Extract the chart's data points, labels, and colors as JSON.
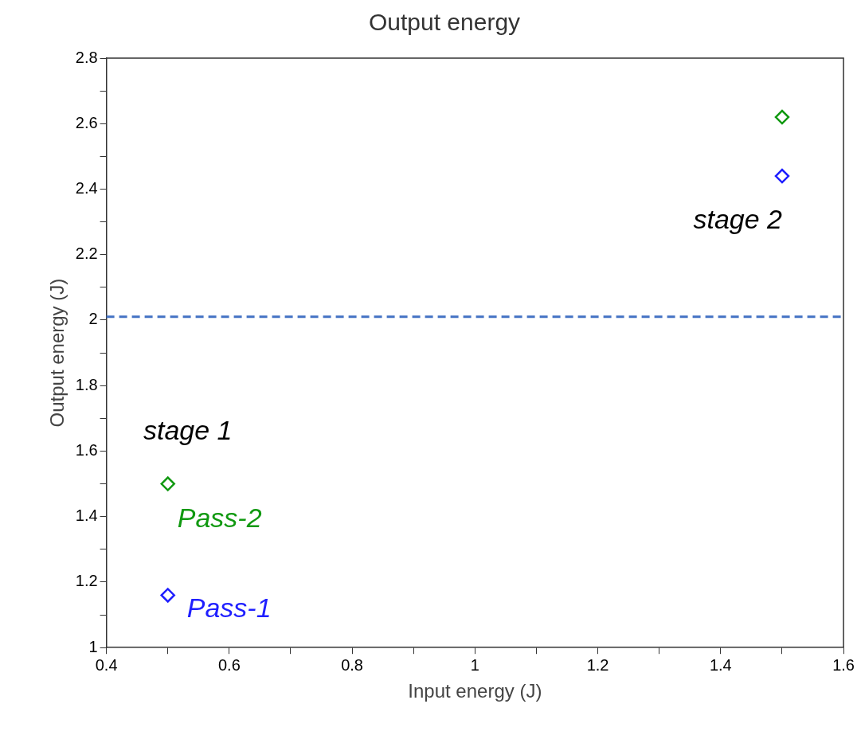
{
  "chart_data": {
    "type": "scatter",
    "title": "Output energy",
    "xlabel": "Input energy (J)",
    "ylabel": "Output energy (J)",
    "x": [
      0.5,
      1.5
    ],
    "series": [
      {
        "name": "Pass-1",
        "color": "#1f1fff",
        "values": [
          1.16,
          2.44
        ]
      },
      {
        "name": "Pass-2",
        "color": "#119911",
        "values": [
          1.5,
          2.62
        ]
      }
    ],
    "xlim": [
      0.4,
      1.6
    ],
    "xticks": [
      0.4,
      {
        "value": 0.5,
        "label": null
      },
      0.6,
      {
        "value": 0.7,
        "label": null
      },
      0.8,
      {
        "value": 0.9,
        "label": null
      },
      1,
      {
        "value": 1.1,
        "label": null
      },
      1.2,
      {
        "value": 1.3,
        "label": null
      },
      1.4,
      {
        "value": 1.5,
        "label": null
      },
      1.6
    ],
    "ylim": [
      1,
      2.8
    ],
    "yticks": [
      1,
      {
        "value": 1.1,
        "label": null
      },
      1.2,
      {
        "value": 1.3,
        "label": null
      },
      1.4,
      {
        "value": 1.5,
        "label": null
      },
      1.6,
      {
        "value": 1.7,
        "label": null
      },
      1.8,
      {
        "value": 1.9,
        "label": null
      },
      2,
      {
        "value": 2.1,
        "label": null
      },
      2.2,
      {
        "value": 2.3,
        "label": null
      },
      2.4,
      {
        "value": 2.5,
        "label": null
      },
      2.6,
      {
        "value": 2.7,
        "label": null
      },
      2.8
    ],
    "ref_lines": [
      {
        "axis": "y",
        "value": 2.01,
        "color": "#4472c4",
        "line_style": "dashed"
      }
    ],
    "annotations": [
      {
        "text": "stage 1",
        "x": 0.5,
        "y": 1.5
      },
      {
        "text": "stage 2",
        "x": 1.5,
        "y": 2.44
      }
    ],
    "marker": "diamond",
    "grid": false,
    "legend": false
  }
}
